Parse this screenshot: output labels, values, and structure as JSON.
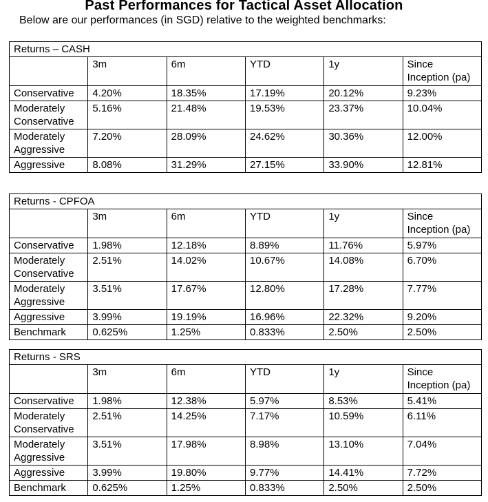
{
  "page": {
    "title": "Past Performances for Tactical Asset Allocation",
    "subtitle": "Below are our performances (in SGD) relative to the weighted benchmarks:"
  },
  "columns": [
    "3m",
    "6m",
    "YTD",
    "1y",
    "Since Inception (pa)"
  ],
  "tables": [
    {
      "title": "Returns – CASH",
      "rows": [
        {
          "label": "Conservative",
          "values": [
            "4.20%",
            "18.35%",
            "17.19%",
            "20.12%",
            "9.23%"
          ]
        },
        {
          "label": "Moderately Conservative",
          "values": [
            "5.16%",
            "21.48%",
            "19.53%",
            "23.37%",
            "10.04%"
          ]
        },
        {
          "label": "Moderately Aggressive",
          "values": [
            "7.20%",
            "28.09%",
            "24.62%",
            "30.36%",
            "12.00%"
          ]
        },
        {
          "label": "Aggressive",
          "values": [
            "8.08%",
            "31.29%",
            "27.15%",
            "33.90%",
            "12.81%"
          ]
        }
      ]
    },
    {
      "title": "Returns - CPFOA",
      "rows": [
        {
          "label": "Conservative",
          "values": [
            "1.98%",
            "12.18%",
            "8.89%",
            "11.76%",
            "5.97%"
          ]
        },
        {
          "label": "Moderately Conservative",
          "values": [
            "2.51%",
            "14.02%",
            "10.67%",
            "14.08%",
            "6.70%"
          ]
        },
        {
          "label": "Moderately Aggressive",
          "values": [
            "3.51%",
            "17.67%",
            "12.80%",
            "17.28%",
            "7.77%"
          ]
        },
        {
          "label": "Aggressive",
          "values": [
            "3.99%",
            "19.19%",
            "16.96%",
            "22.32%",
            "9.20%"
          ]
        },
        {
          "label": "Benchmark",
          "values": [
            "0.625%",
            "1.25%",
            "0.833%",
            "2.50%",
            "2.50%"
          ]
        }
      ]
    },
    {
      "title": "Returns - SRS",
      "rows": [
        {
          "label": "Conservative",
          "values": [
            "1.98%",
            "12.38%",
            "5.97%",
            "8.53%",
            "5.41%"
          ]
        },
        {
          "label": "Moderately Conservative",
          "values": [
            "2.51%",
            "14.25%",
            "7.17%",
            "10.59%",
            "6.11%"
          ]
        },
        {
          "label": "Moderately Aggressive",
          "values": [
            "3.51%",
            "17.98%",
            "8.98%",
            "13.10%",
            "7.04%"
          ]
        },
        {
          "label": "Aggressive",
          "values": [
            "3.99%",
            "19.80%",
            "9.77%",
            "14.41%",
            "7.72%"
          ]
        },
        {
          "label": "Benchmark",
          "values": [
            "0.625%",
            "1.25%",
            "0.833%",
            "2.50%",
            "2.50%"
          ]
        }
      ]
    }
  ]
}
